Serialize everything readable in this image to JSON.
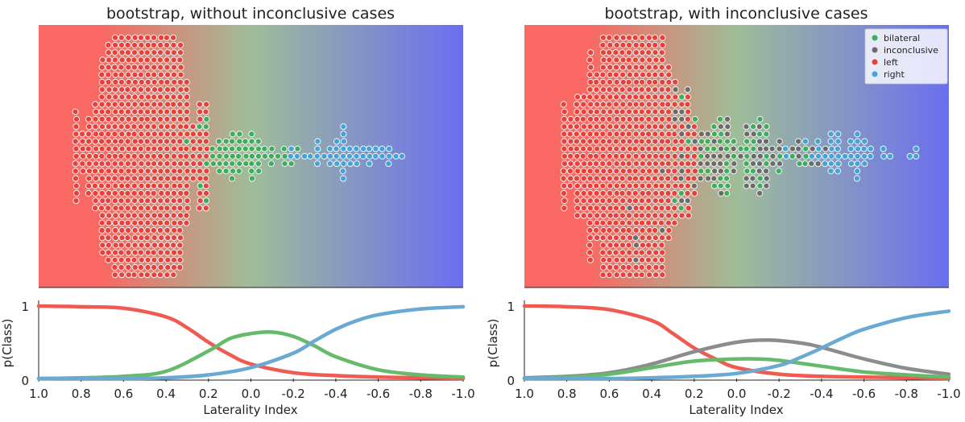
{
  "chart_data": [
    {
      "type": "scatter",
      "title": "bootstrap, without inconclusive cases",
      "xlim": [
        1.0,
        -1.0
      ],
      "background_gradient": [
        "#f96862",
        "#9fbd99",
        "#6a6ef0"
      ],
      "class_colors": {
        "bilateral": "#3dae5c",
        "left": "#e8413b",
        "right": "#45a3d9"
      },
      "clusters": [
        {
          "label": "left",
          "x_range": [
            0.9,
            0.23
          ],
          "count": 640
        },
        {
          "label": "bilateral",
          "x_range": [
            0.35,
            -0.25
          ],
          "count": 60
        },
        {
          "label": "right",
          "x_range": [
            -0.2,
            -0.9
          ],
          "count": 45
        }
      ]
    },
    {
      "type": "scatter",
      "title": "bootstrap, with inconclusive cases",
      "xlim": [
        1.0,
        -1.0
      ],
      "background_gradient": [
        "#f96862",
        "#9fbd99",
        "#6a6ef0"
      ],
      "legend": {
        "position": "top-right",
        "entries": [
          "bilateral",
          "inconclusive",
          "left",
          "right"
        ]
      },
      "class_colors": {
        "bilateral": "#3dae5c",
        "inconclusive": "#6b6b6b",
        "left": "#e8413b",
        "right": "#45a3d9"
      },
      "clusters": [
        {
          "label": "left",
          "x_range": [
            0.9,
            0.23
          ],
          "count": 620
        },
        {
          "label": "inconclusive",
          "x_range": [
            0.55,
            -0.45
          ],
          "count": 85
        },
        {
          "label": "bilateral",
          "x_range": [
            0.35,
            -0.35
          ],
          "count": 55
        },
        {
          "label": "right",
          "x_range": [
            -0.2,
            -0.92
          ],
          "count": 45
        }
      ]
    },
    {
      "type": "line",
      "ylabel": "p(Class)",
      "xlabel": "Laterality Index",
      "xlim": [
        1.0,
        -1.0
      ],
      "ylim": [
        0,
        1
      ],
      "yticks": [
        "0",
        "1"
      ],
      "xticks": [
        "1.0",
        "0.8",
        "0.6",
        "0.4",
        "0.2",
        "0.0",
        "-0.2",
        "-0.4",
        "-0.6",
        "-0.8",
        "-1.0"
      ],
      "series": [
        {
          "class": "left",
          "color": "#ef5b51",
          "x": [
            1.0,
            0.8,
            0.6,
            0.4,
            0.3,
            0.2,
            0.1,
            0.0,
            -0.2,
            -0.4,
            -0.6,
            -0.8,
            -1.0
          ],
          "values": [
            1.0,
            0.99,
            0.97,
            0.85,
            0.7,
            0.5,
            0.33,
            0.2,
            0.08,
            0.04,
            0.02,
            0.01,
            0.0
          ]
        },
        {
          "class": "bilateral",
          "color": "#66ba6b",
          "x": [
            1.0,
            0.8,
            0.6,
            0.4,
            0.2,
            0.1,
            0.0,
            -0.1,
            -0.2,
            -0.3,
            -0.4,
            -0.6,
            -0.8,
            -1.0
          ],
          "values": [
            0.0,
            0.01,
            0.03,
            0.1,
            0.38,
            0.55,
            0.62,
            0.64,
            0.58,
            0.45,
            0.3,
            0.12,
            0.05,
            0.02
          ]
        },
        {
          "class": "right",
          "color": "#6aaad2",
          "x": [
            1.0,
            0.6,
            0.4,
            0.2,
            0.0,
            -0.2,
            -0.3,
            -0.4,
            -0.5,
            -0.6,
            -0.8,
            -1.0
          ],
          "values": [
            0.0,
            0.0,
            0.01,
            0.05,
            0.15,
            0.35,
            0.52,
            0.68,
            0.8,
            0.88,
            0.96,
            0.99
          ]
        }
      ]
    },
    {
      "type": "line",
      "ylabel": "p(Class)",
      "xlabel": "Laterality Index",
      "xlim": [
        1.0,
        -1.0
      ],
      "ylim": [
        0,
        1
      ],
      "yticks": [
        "0",
        "1"
      ],
      "xticks": [
        "1.0",
        "0.8",
        "0.6",
        "0.4",
        "0.2",
        "0.0",
        "-0.2",
        "-0.4",
        "-0.6",
        "-0.8",
        "-1.0"
      ],
      "series": [
        {
          "class": "left",
          "color": "#ef5b51",
          "x": [
            1.0,
            0.8,
            0.6,
            0.4,
            0.3,
            0.2,
            0.1,
            0.0,
            -0.2,
            -0.4,
            -0.6,
            -0.8,
            -1.0
          ],
          "values": [
            1.0,
            0.99,
            0.95,
            0.8,
            0.62,
            0.42,
            0.27,
            0.15,
            0.06,
            0.03,
            0.02,
            0.01,
            0.0
          ]
        },
        {
          "class": "inconclusive",
          "color": "#8c8c8c",
          "x": [
            1.0,
            0.8,
            0.6,
            0.4,
            0.2,
            0.0,
            -0.15,
            -0.3,
            -0.4,
            -0.6,
            -0.8,
            -1.0
          ],
          "values": [
            0.01,
            0.03,
            0.08,
            0.2,
            0.37,
            0.5,
            0.53,
            0.49,
            0.43,
            0.27,
            0.14,
            0.06
          ]
        },
        {
          "class": "bilateral",
          "color": "#66ba6b",
          "x": [
            1.0,
            0.8,
            0.6,
            0.4,
            0.2,
            0.0,
            -0.1,
            -0.2,
            -0.4,
            -0.6,
            -0.8,
            -1.0
          ],
          "values": [
            0.0,
            0.02,
            0.06,
            0.15,
            0.24,
            0.27,
            0.27,
            0.25,
            0.17,
            0.09,
            0.05,
            0.02
          ]
        },
        {
          "class": "right",
          "color": "#6aaad2",
          "x": [
            1.0,
            0.6,
            0.4,
            0.2,
            0.0,
            -0.2,
            -0.3,
            -0.4,
            -0.5,
            -0.6,
            -0.8,
            -1.0
          ],
          "values": [
            0.0,
            0.0,
            0.01,
            0.03,
            0.07,
            0.18,
            0.29,
            0.42,
            0.56,
            0.68,
            0.84,
            0.93
          ]
        }
      ]
    }
  ]
}
